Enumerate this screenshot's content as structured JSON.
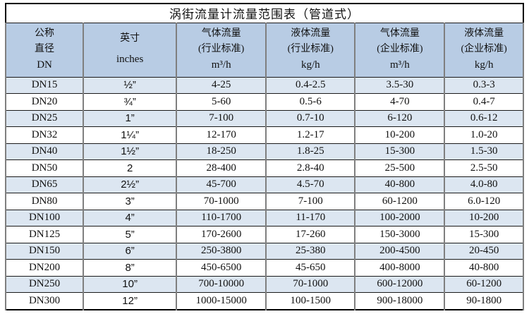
{
  "chart_data": {
    "type": "table",
    "title": "涡街流量计流量范围表（管道式）",
    "columns": [
      {
        "id": "nominal-diameter",
        "lines": [
          "公称",
          "直径",
          "DN"
        ]
      },
      {
        "id": "inches",
        "lines": [
          "英寸",
          "inches"
        ]
      },
      {
        "id": "gas-flow-industry",
        "lines": [
          "气体流量",
          "(行业标准)",
          "m³/h"
        ]
      },
      {
        "id": "liquid-flow-industry",
        "lines": [
          "液体流量",
          "(行业标准)",
          "kg/h"
        ]
      },
      {
        "id": "gas-flow-enterprise",
        "lines": [
          "气体流量",
          "(企业标准)",
          "m³/h"
        ]
      },
      {
        "id": "liquid-flow-enterprise",
        "lines": [
          "液体流量",
          "(企业标准)",
          "kg/h"
        ]
      }
    ],
    "rows": [
      [
        "DN15",
        "½”",
        "4-25",
        "0.4-2.5",
        "3.5-30",
        "0.3-3"
      ],
      [
        "DN20",
        "¾”",
        "5-60",
        "0.5-6",
        "4-70",
        "0.4-7"
      ],
      [
        "DN25",
        "1”",
        "7-100",
        "0.7-10",
        "6-120",
        "0.6-12"
      ],
      [
        "DN32",
        "1¼”",
        "12-170",
        "1.2-17",
        "10-200",
        "1.0-20"
      ],
      [
        "DN40",
        "1½”",
        "18-250",
        "1.8-25",
        "15-300",
        "1.5-30"
      ],
      [
        "DN50",
        "2",
        "28-400",
        "2.8-40",
        "25-500",
        "2.5-50"
      ],
      [
        "DN65",
        "2½”",
        "45-700",
        "4.5-70",
        "40-800",
        "4.0-80"
      ],
      [
        "DN80",
        "3”",
        "70-1000",
        "7-100",
        "60-1200",
        "6.0-120"
      ],
      [
        "DN100",
        "4”",
        "110-1700",
        "11-170",
        "100-2000",
        "10-200"
      ],
      [
        "DN125",
        "5”",
        "170-2600",
        "17-260",
        "150-3000",
        "15-300"
      ],
      [
        "DN150",
        "6”",
        "250-3800",
        "25-380",
        "200-4500",
        "20-450"
      ],
      [
        "DN200",
        "8”",
        "450-6500",
        "45-650",
        "400-8000",
        "40-800"
      ],
      [
        "DN250",
        "10”",
        "700-10000",
        "70-1000",
        "600-12000",
        "60-1200"
      ],
      [
        "DN300",
        "12”",
        "1000-15000",
        "100-1500",
        "900-18000",
        "90-1800"
      ]
    ],
    "column_widths_percent": [
      15.0,
      18.0,
      17.3,
      17.2,
      17.3,
      15.2
    ]
  },
  "colors": {
    "header_bg": "#b8cce4",
    "stripe_bg": "#dce6f1",
    "border_outer": "#000000",
    "border_vertical": "#7f7f7f",
    "text": "#111111"
  }
}
